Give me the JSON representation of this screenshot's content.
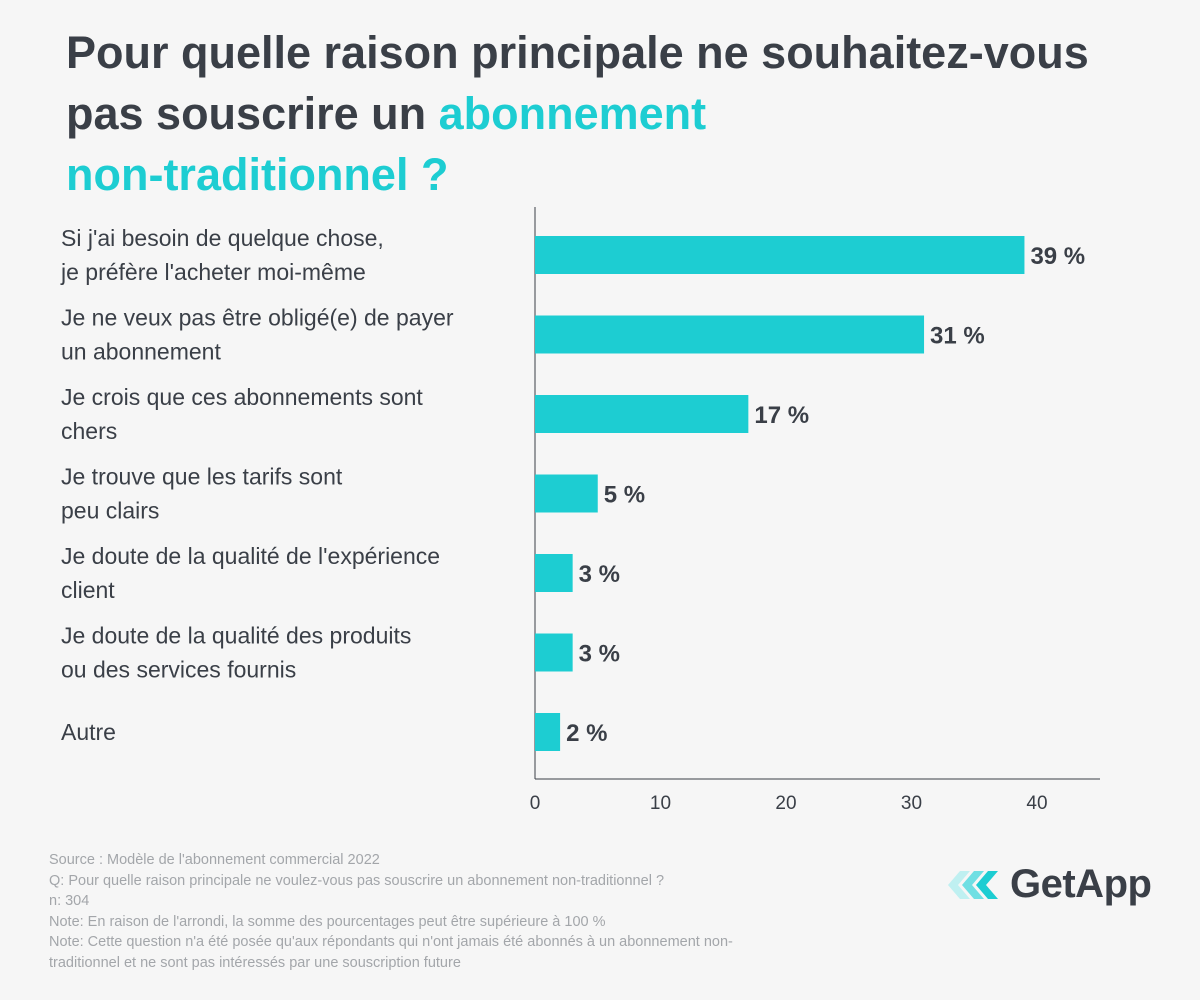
{
  "title": {
    "line1": "Pour quelle raison principale ne souhaitez-vous",
    "line2_plain": "pas souscrire un ",
    "line2_accent": "abonnement",
    "line3_accent": "non-traditionnel",
    "line3_plain": " ?"
  },
  "colors": {
    "accent": "#1dcdd2",
    "text": "#3a3f47",
    "footer": "#a3a6aa",
    "background": "#f6f6f6"
  },
  "chart_data": {
    "type": "bar",
    "orientation": "horizontal",
    "categories": [
      [
        "Si j'ai besoin de quelque chose,",
        "je préfère l'acheter moi-même"
      ],
      [
        "Je ne veux pas être obligé(e) de payer",
        "un abonnement"
      ],
      [
        "Je crois que ces abonnements sont",
        "chers"
      ],
      [
        "Je trouve que les tarifs sont",
        "peu clairs"
      ],
      [
        "Je doute de la qualité de l'expérience",
        "client"
      ],
      [
        "Je doute de la qualité des produits",
        "ou des services fournis"
      ],
      [
        "Autre"
      ]
    ],
    "values": [
      39,
      31,
      17,
      5,
      3,
      3,
      2
    ],
    "value_labels": [
      "39 %",
      "31 %",
      "17 %",
      "5 %",
      "3 %",
      "3 %",
      "2 %"
    ],
    "xticks": [
      0,
      10,
      20,
      30,
      40
    ],
    "xlim": [
      0,
      45
    ],
    "xlabel": "",
    "ylabel": "",
    "bar_color": "#1dcdd2"
  },
  "footer": {
    "source": "Source :  Modèle de l'abonnement commercial 2022",
    "question": "Q: Pour quelle raison principale ne voulez-vous pas souscrire un abonnement non-traditionnel ?",
    "n": "n: 304",
    "note1": "Note: En raison de l'arrondi, la somme des pourcentages peut être supérieure à 100 %",
    "note2_line1": "Note: Cette question n'a été posée qu'aux répondants qui n'ont jamais été abonnés à un abonnement non-",
    "note2_line2": "traditionnel et ne sont pas intéressés par une souscription future"
  },
  "logo": {
    "text": "GetApp",
    "icon": "getapp-chevrons-icon"
  }
}
